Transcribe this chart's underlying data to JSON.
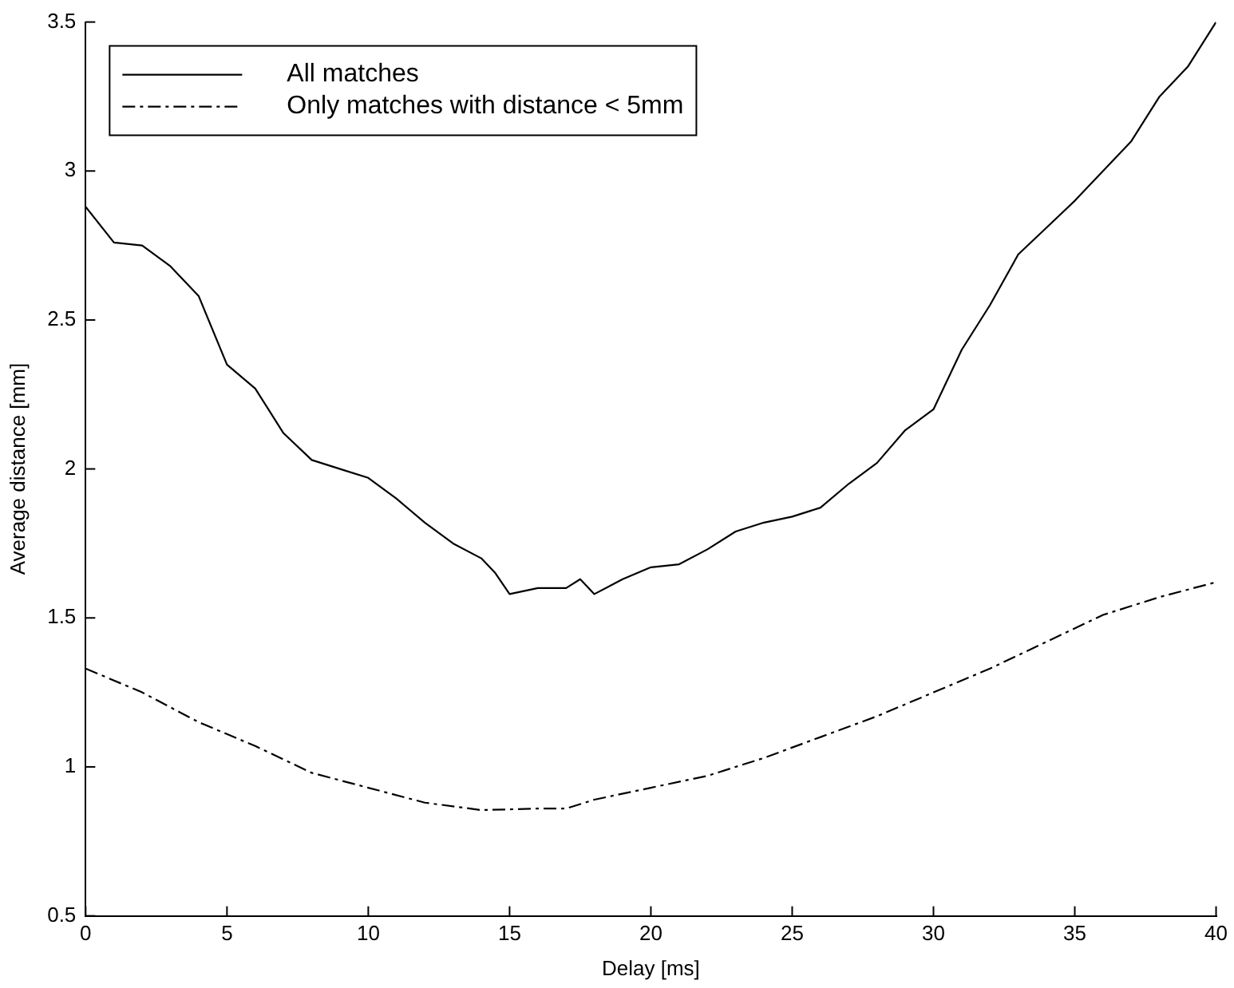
{
  "chart_data": {
    "type": "line",
    "xlabel": "Delay [ms]",
    "ylabel": "Average distance [mm]",
    "xlim": [
      0,
      40
    ],
    "xticks": [
      0,
      5,
      10,
      15,
      20,
      25,
      30,
      35,
      40
    ],
    "ylim": [
      0.5,
      3.5
    ],
    "yticks": [
      0.5,
      1,
      1.5,
      2,
      2.5,
      3,
      3.5
    ],
    "grid": false,
    "legend": "top left",
    "marker": "none",
    "series": [
      {
        "name": "All matches",
        "color": "#000000",
        "line_style": "solid",
        "x": [
          0,
          1,
          2,
          3,
          4,
          5,
          6,
          7,
          8,
          9,
          10,
          11,
          12,
          13,
          14,
          14.5,
          15,
          16,
          17,
          17.5,
          18,
          19,
          20,
          21,
          22,
          23,
          24,
          25,
          26,
          27,
          28,
          29,
          30,
          31,
          32,
          33,
          34,
          35,
          36,
          37,
          38,
          39,
          40
        ],
        "values": [
          2.88,
          2.76,
          2.75,
          2.68,
          2.58,
          2.35,
          2.27,
          2.12,
          2.03,
          2.0,
          1.97,
          1.9,
          1.82,
          1.75,
          1.7,
          1.65,
          1.58,
          1.6,
          1.6,
          1.63,
          1.58,
          1.63,
          1.67,
          1.68,
          1.73,
          1.79,
          1.82,
          1.84,
          1.87,
          1.95,
          2.02,
          2.13,
          2.2,
          2.4,
          2.55,
          2.72,
          2.81,
          2.9,
          3.0,
          3.1,
          3.25,
          3.35,
          3.5
        ]
      },
      {
        "name": "Only matches with distance < 5mm",
        "color": "#000000",
        "line_style": "dashdot",
        "x": [
          0,
          2,
          4,
          6,
          8,
          10,
          12,
          14,
          16,
          17,
          18,
          20,
          22,
          24,
          26,
          28,
          30,
          32,
          34,
          36,
          38,
          40
        ],
        "values": [
          1.33,
          1.25,
          1.15,
          1.07,
          0.98,
          0.93,
          0.88,
          0.855,
          0.86,
          0.86,
          0.89,
          0.93,
          0.97,
          1.03,
          1.1,
          1.17,
          1.25,
          1.33,
          1.42,
          1.51,
          1.57,
          1.62
        ]
      }
    ]
  }
}
